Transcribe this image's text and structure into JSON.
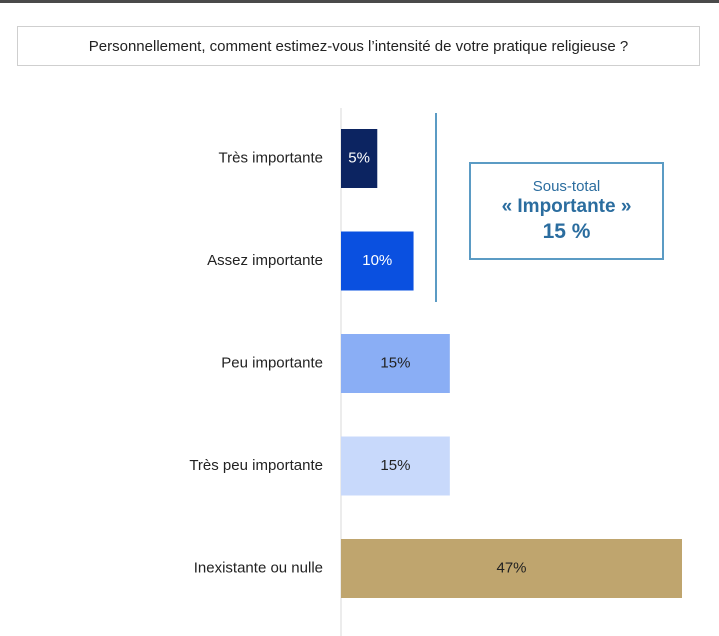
{
  "question": "Personnellement, comment estimez-vous l’intensité de votre pratique religieuse ?",
  "subtotal": {
    "title": "Sous-total",
    "label": "« Importante »",
    "value": "15 %"
  },
  "chart_data": {
    "type": "bar",
    "orientation": "horizontal",
    "title": "",
    "xlabel": "",
    "ylabel": "",
    "xlim": [
      0,
      47
    ],
    "categories": [
      "Très importante",
      "Assez importante",
      "Peu importante",
      "Très peu importante",
      "Inexistante ou nulle"
    ],
    "values": [
      5,
      10,
      15,
      15,
      47
    ],
    "value_labels": [
      "5%",
      "10%",
      "15%",
      "15%",
      "47%"
    ],
    "colors": [
      "#0c2461",
      "#0a50e0",
      "#8aaef5",
      "#c8d9fb",
      "#bfa56e"
    ],
    "label_colors": [
      "#ffffff",
      "#ffffff",
      "#222222",
      "#222222",
      "#222222"
    ],
    "grid": false,
    "legend": "none"
  }
}
